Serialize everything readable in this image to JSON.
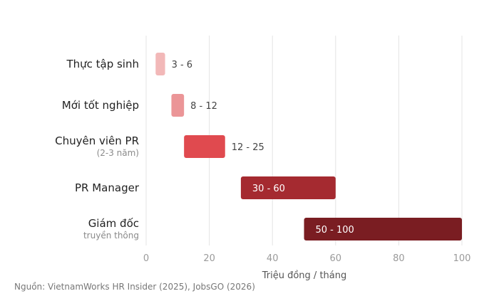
{
  "chart_data": {
    "type": "bar",
    "orientation": "horizontal",
    "subtype": "range",
    "categories": [
      {
        "label": "Thực tập sinh",
        "sublabel": "",
        "min": 3,
        "max": 6,
        "value_label": "3 - 6",
        "color": "#f2b8b8"
      },
      {
        "label": "Mới tốt nghiệp",
        "sublabel": "",
        "min": 8,
        "max": 12,
        "value_label": "8 - 12",
        "color": "#eb9597"
      },
      {
        "label": "Chuyên viên PR",
        "sublabel": "(2-3 năm)",
        "min": 12,
        "max": 25,
        "value_label": "12 - 25",
        "color": "#e04a4f"
      },
      {
        "label": "PR Manager",
        "sublabel": "",
        "min": 30,
        "max": 60,
        "value_label": "30 - 60",
        "color": "#a52a30"
      },
      {
        "label": "Giám đốc",
        "sublabel": "truyền thông",
        "min": 50,
        "max": 100,
        "value_label": "50 - 100",
        "color": "#7a1d22"
      }
    ],
    "xlabel": "Triệu đồng / tháng",
    "xlim": [
      0,
      100
    ],
    "xticks": [
      0,
      20,
      40,
      60,
      80,
      100
    ],
    "grid": true,
    "legend": "none"
  },
  "source": "Nguồn: VietnamWorks HR Insider (2025), JobsGO (2026)"
}
